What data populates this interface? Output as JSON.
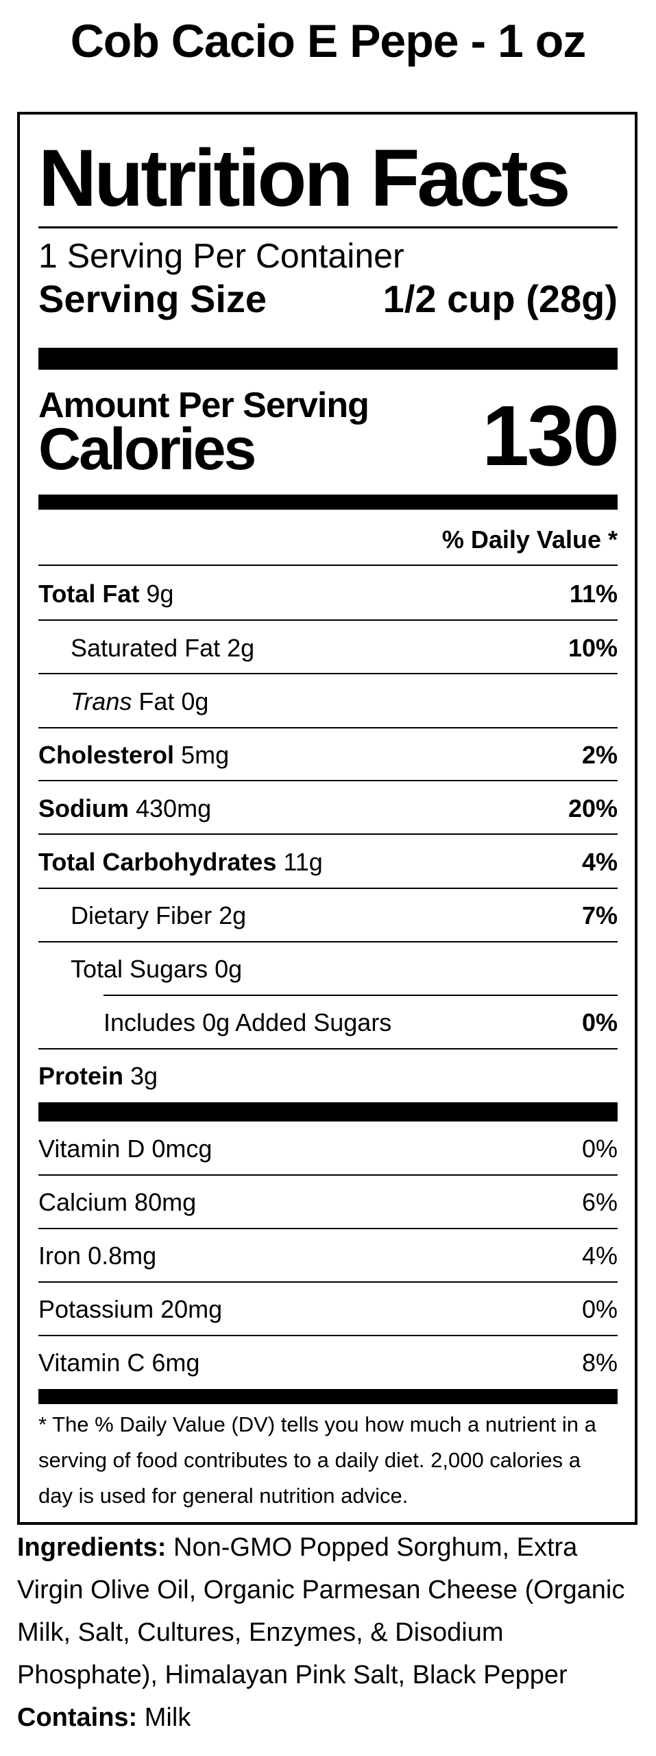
{
  "product_title": "Cob Cacio E Pepe - 1 oz",
  "label": {
    "heading": "Nutrition Facts",
    "servings_per_container": "1 Serving Per Container",
    "serving_size_label": "Serving Size",
    "serving_size_value": "1/2 cup (28g)",
    "amount_per_serving": "Amount Per Serving",
    "calories_label": "Calories",
    "calories_value": "130",
    "daily_value_header": "% Daily Value *",
    "nutrients": [
      {
        "name": "Total Fat",
        "amount": "9g",
        "dv": "11%"
      },
      {
        "name": "Saturated Fat",
        "amount": "2g",
        "dv": "10%"
      },
      {
        "name": "Trans",
        "suffix": "Fat",
        "amount": "0g",
        "dv": ""
      },
      {
        "name": "Cholesterol",
        "amount": "5mg",
        "dv": "2%"
      },
      {
        "name": "Sodium",
        "amount": "430mg",
        "dv": "20%"
      },
      {
        "name": "Total Carbohydrates",
        "amount": "11g",
        "dv": "4%"
      },
      {
        "name": "Dietary Fiber",
        "amount": "2g",
        "dv": "7%"
      },
      {
        "name": "Total Sugars",
        "amount": "0g",
        "dv": ""
      },
      {
        "name": "Includes 0g Added Sugars",
        "amount": "",
        "dv": "0%"
      },
      {
        "name": "Protein",
        "amount": "3g",
        "dv": ""
      }
    ],
    "vitamins": [
      {
        "name": "Vitamin D",
        "amount": "0mcg",
        "dv": "0%"
      },
      {
        "name": "Calcium",
        "amount": "80mg",
        "dv": "6%"
      },
      {
        "name": "Iron",
        "amount": "0.8mg",
        "dv": "4%"
      },
      {
        "name": "Potassium",
        "amount": "20mg",
        "dv": "0%"
      },
      {
        "name": "Vitamin C",
        "amount": "6mg",
        "dv": "8%"
      }
    ],
    "footnote_lines": [
      "* The % Daily Value (DV) tells you how much a nutrient in a",
      "serving of food contributes to a daily diet. 2,000 calories a",
      "day is used for general nutrition advice."
    ]
  },
  "ingredients": {
    "label": "Ingredients:",
    "lines": [
      "Non-GMO Popped Sorghum, Extra",
      "Virgin Olive Oil, Organic Parmesan Cheese (Organic",
      "Milk, Salt, Cultures, Enzymes, & Disodium",
      "Phosphate), Himalayan Pink Salt, Black Pepper"
    ],
    "contains_label": "Contains:",
    "contains_value": "Milk"
  }
}
